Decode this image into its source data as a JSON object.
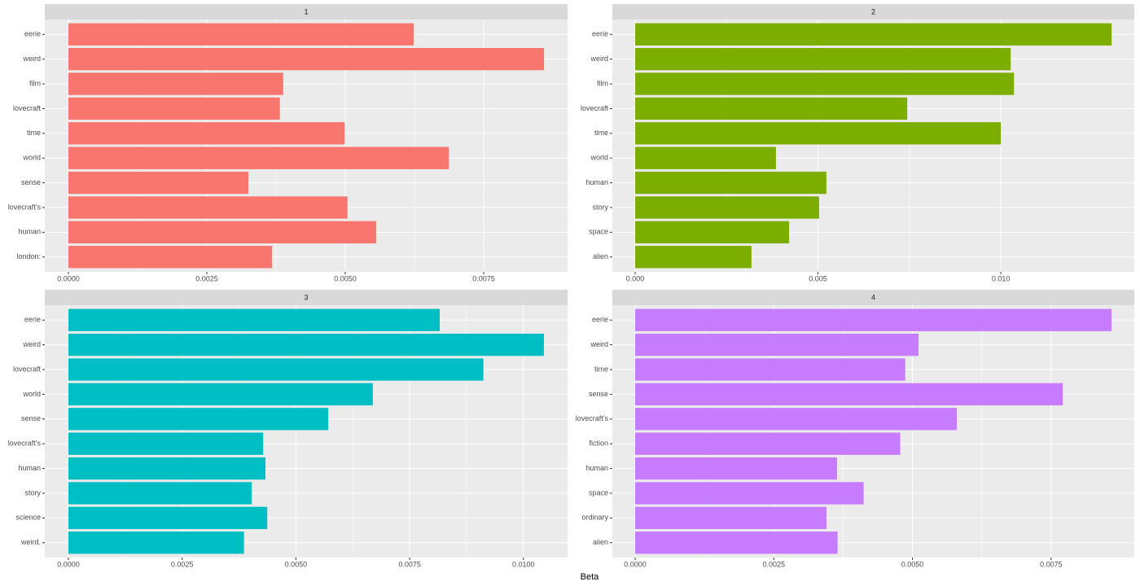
{
  "chart_data": {
    "type": "bar",
    "orientation": "horizontal",
    "xlabel": "Beta",
    "grid": true,
    "facets": [
      {
        "title": "1",
        "color": "#F8766D",
        "categories": [
          "eerie",
          "weird",
          "film",
          "lovecraft",
          "time",
          "world",
          "sense",
          "lovecraft's",
          "human",
          "london:"
        ],
        "values": [
          0.00624,
          0.00859,
          0.00388,
          0.00382,
          0.00499,
          0.00687,
          0.00325,
          0.00504,
          0.00556,
          0.00368
        ],
        "xlim": [
          -0.000426,
          0.009015
        ],
        "xticks": [
          {
            "value": 0,
            "label": "0.0000"
          },
          {
            "value": 0.0025,
            "label": "0.0025"
          },
          {
            "value": 0.005,
            "label": "0.0050"
          },
          {
            "value": 0.0075,
            "label": "0.0075"
          }
        ]
      },
      {
        "title": "2",
        "color": "#7CAE00",
        "categories": [
          "eerie",
          "weird",
          "film",
          "lovecraft",
          "time",
          "world",
          "human",
          "story",
          "space",
          "alien"
        ],
        "values": [
          0.01303,
          0.01027,
          0.01036,
          0.00744,
          0.01,
          0.00385,
          0.00523,
          0.00503,
          0.00421,
          0.00318
        ],
        "xlim": [
          -0.000624,
          0.01365
        ],
        "xticks": [
          {
            "value": 0,
            "label": "0.000"
          },
          {
            "value": 0.005,
            "label": "0.005"
          },
          {
            "value": 0.01,
            "label": "0.010"
          }
        ]
      },
      {
        "title": "3",
        "color": "#00BFC4",
        "categories": [
          "eerie",
          "weird",
          "lovecraft",
          "world",
          "sense",
          "lovecraft's",
          "human",
          "story",
          "science",
          "weird."
        ],
        "values": [
          0.00816,
          0.01045,
          0.00912,
          0.00669,
          0.00571,
          0.00428,
          0.00433,
          0.00403,
          0.00437,
          0.00386
        ],
        "xlim": [
          -0.000519,
          0.01097
        ],
        "xticks": [
          {
            "value": 0,
            "label": "0.0000"
          },
          {
            "value": 0.0025,
            "label": "0.0025"
          },
          {
            "value": 0.005,
            "label": "0.0050"
          },
          {
            "value": 0.0075,
            "label": "0.0075"
          },
          {
            "value": 0.01,
            "label": "0.0100"
          }
        ]
      },
      {
        "title": "4",
        "color": "#C77CFF",
        "categories": [
          "eerie",
          "weird",
          "time",
          "sense",
          "lovecraft's",
          "fiction",
          "human",
          "space",
          "ordinary",
          "alien"
        ],
        "values": [
          0.00859,
          0.00511,
          0.00487,
          0.00771,
          0.0058,
          0.00478,
          0.00364,
          0.00412,
          0.00345,
          0.00365
        ],
        "xlim": [
          -0.000411,
          0.009
        ],
        "xticks": [
          {
            "value": 0,
            "label": "0.0000"
          },
          {
            "value": 0.0025,
            "label": "0.0025"
          },
          {
            "value": 0.005,
            "label": "0.0050"
          },
          {
            "value": 0.0075,
            "label": "0.0075"
          }
        ]
      }
    ]
  }
}
